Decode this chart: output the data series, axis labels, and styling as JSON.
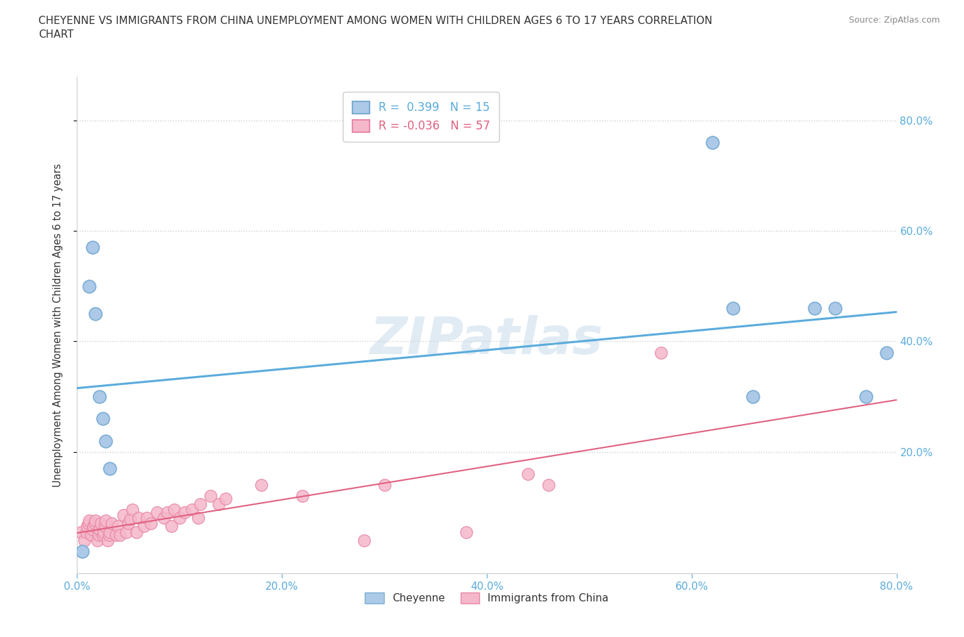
{
  "title": "CHEYENNE VS IMMIGRANTS FROM CHINA UNEMPLOYMENT AMONG WOMEN WITH CHILDREN AGES 6 TO 17 YEARS CORRELATION\nCHART",
  "source": "Source: ZipAtlas.com",
  "ylabel": "Unemployment Among Women with Children Ages 6 to 17 years",
  "xlim": [
    0.0,
    0.8
  ],
  "ylim": [
    -0.02,
    0.88
  ],
  "xtick_vals": [
    0.0,
    0.2,
    0.4,
    0.6,
    0.8
  ],
  "ytick_vals": [
    0.2,
    0.4,
    0.6,
    0.8
  ],
  "ytick_right_vals": [
    0.2,
    0.4,
    0.6,
    0.8
  ],
  "background_color": "#ffffff",
  "watermark": "ZIPatlas",
  "cheyenne_color": "#adc9e8",
  "cheyenne_edge": "#7aadd4",
  "china_color": "#f5b8ca",
  "china_edge": "#e888a8",
  "cheyenne_line_color": "#5aabdc",
  "china_line_color": "#e06080",
  "cheyenne_R": 0.399,
  "cheyenne_N": 15,
  "china_R": -0.036,
  "china_N": 57,
  "cheyenne_x": [
    0.005,
    0.012,
    0.015,
    0.018,
    0.022,
    0.025,
    0.028,
    0.032,
    0.62,
    0.64,
    0.66,
    0.72,
    0.74,
    0.77,
    0.79
  ],
  "cheyenne_y": [
    0.02,
    0.5,
    0.57,
    0.45,
    0.3,
    0.26,
    0.22,
    0.17,
    0.76,
    0.46,
    0.3,
    0.46,
    0.46,
    0.3,
    0.38
  ],
  "china_x": [
    0.004,
    0.007,
    0.009,
    0.01,
    0.011,
    0.012,
    0.014,
    0.015,
    0.016,
    0.017,
    0.018,
    0.02,
    0.021,
    0.022,
    0.023,
    0.025,
    0.026,
    0.027,
    0.028,
    0.03,
    0.031,
    0.032,
    0.034,
    0.038,
    0.04,
    0.042,
    0.045,
    0.048,
    0.05,
    0.052,
    0.054,
    0.058,
    0.06,
    0.065,
    0.068,
    0.072,
    0.078,
    0.085,
    0.088,
    0.092,
    0.095,
    0.1,
    0.105,
    0.112,
    0.118,
    0.12,
    0.13,
    0.138,
    0.145,
    0.18,
    0.22,
    0.28,
    0.3,
    0.38,
    0.44,
    0.46,
    0.57
  ],
  "china_y": [
    0.055,
    0.04,
    0.055,
    0.065,
    0.07,
    0.075,
    0.05,
    0.06,
    0.065,
    0.07,
    0.075,
    0.04,
    0.05,
    0.06,
    0.07,
    0.05,
    0.055,
    0.065,
    0.075,
    0.04,
    0.05,
    0.055,
    0.07,
    0.05,
    0.065,
    0.05,
    0.085,
    0.055,
    0.07,
    0.078,
    0.095,
    0.055,
    0.08,
    0.065,
    0.08,
    0.07,
    0.09,
    0.08,
    0.09,
    0.065,
    0.095,
    0.08,
    0.09,
    0.095,
    0.08,
    0.105,
    0.12,
    0.105,
    0.115,
    0.14,
    0.12,
    0.04,
    0.14,
    0.055,
    0.16,
    0.14,
    0.38
  ],
  "grid_color": "#cccccc",
  "tick_color": "#5aabdc"
}
